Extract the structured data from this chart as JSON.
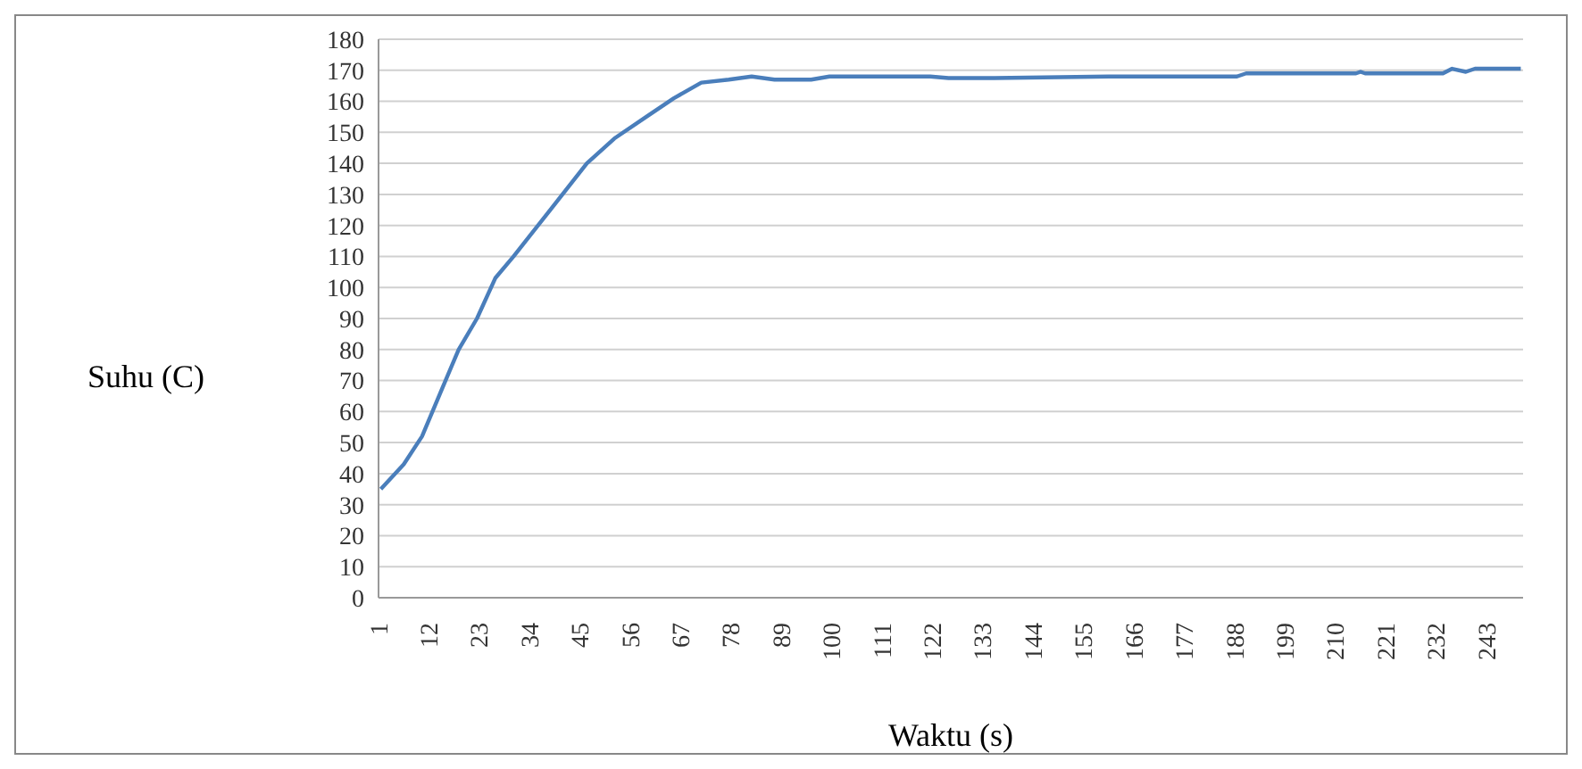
{
  "chart_data": {
    "type": "line",
    "xlabel": "Waktu (s)",
    "ylabel": "Suhu (C)",
    "x": [
      1,
      6,
      10,
      14,
      18,
      22,
      26,
      30,
      38,
      46,
      52,
      59,
      65,
      71,
      77,
      82,
      87,
      95,
      99,
      121,
      125,
      135,
      160,
      188,
      190,
      214,
      215,
      216,
      233,
      235,
      238,
      240,
      250
    ],
    "series": [
      {
        "color": "#4a7ebb",
        "values": [
          35,
          43,
          52,
          66,
          80,
          90,
          103,
          110,
          125,
          140,
          148,
          155,
          161,
          166,
          167,
          168,
          167,
          167,
          168,
          168,
          167.5,
          167.5,
          168,
          168,
          169,
          169,
          169.5,
          169,
          169,
          170.5,
          169.5,
          170.5,
          170.5
        ]
      }
    ],
    "xlim": [
      0.5,
      250.5
    ],
    "xticks": [
      1,
      12,
      23,
      34,
      45,
      56,
      67,
      78,
      89,
      100,
      111,
      122,
      133,
      144,
      155,
      166,
      177,
      188,
      199,
      210,
      221,
      232,
      243
    ],
    "ylim": [
      0,
      180
    ],
    "yticks": [
      0,
      10,
      20,
      30,
      40,
      50,
      60,
      70,
      80,
      90,
      100,
      110,
      120,
      130,
      140,
      150,
      160,
      170,
      180
    ],
    "grid": "y",
    "legend": false,
    "marker": "none",
    "line_style": "solid"
  }
}
